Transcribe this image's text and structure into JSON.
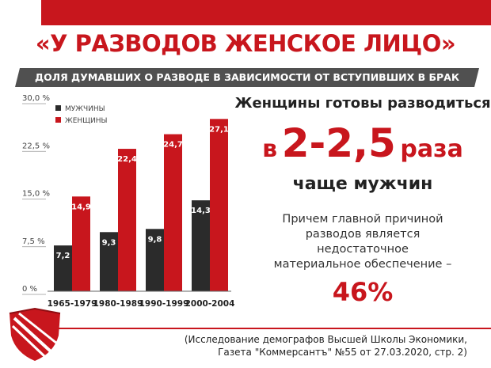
{
  "header": {
    "title": "«У РАЗВОДОВ ЖЕНСКОЕ ЛИЦО»",
    "subtitle": "ДОЛЯ ДУМАВШИХ О РАЗВОДЕ В ЗАВИСИМОСТИ  ОТ ВСТУПИВШИХ В БРАК"
  },
  "highlight": {
    "line1": "Женщины готовы разводиться",
    "line2_prefix": "в",
    "line2_number": "2-2,5",
    "line2_suffix": "раза",
    "line3": "чаще мужчин",
    "para1": "Причем главной причиной",
    "para2": "разводов является",
    "para3": "недостаточное",
    "para4": "материальное обеспечение –",
    "percent": "46%"
  },
  "source": {
    "line1": "(Исследование демографов Высшей Школы Экономики,",
    "line2": "Газета \"Коммерсантъ\" №55 от 27.03.2020, стр. 2)"
  },
  "colors": {
    "accent": "#c8161d",
    "men": "#2b2b2b",
    "women": "#c8161d"
  },
  "chart_data": {
    "type": "bar",
    "categories": [
      "1965-1979",
      "1980-1989",
      "1990-1999",
      "2000-2004"
    ],
    "series": [
      {
        "name": "МУЖЧИНЫ",
        "values": [
          7.2,
          9.3,
          9.8,
          14.3
        ],
        "labels": [
          "7,2",
          "9,3",
          "9,8",
          "14,3"
        ]
      },
      {
        "name": "ЖЕНЩИНЫ",
        "values": [
          14.9,
          22.4,
          24.7,
          27.1
        ],
        "labels": [
          "14,9",
          "22,4",
          "24,7",
          "27,1"
        ]
      }
    ],
    "yticks": [
      0,
      7.5,
      15,
      22.5,
      30
    ],
    "ytick_labels": [
      "0 %",
      "7,5 %",
      "15,0 %",
      "22,5 %",
      "30,0 %"
    ],
    "ylim": [
      0,
      30
    ],
    "legend": "top-left"
  }
}
